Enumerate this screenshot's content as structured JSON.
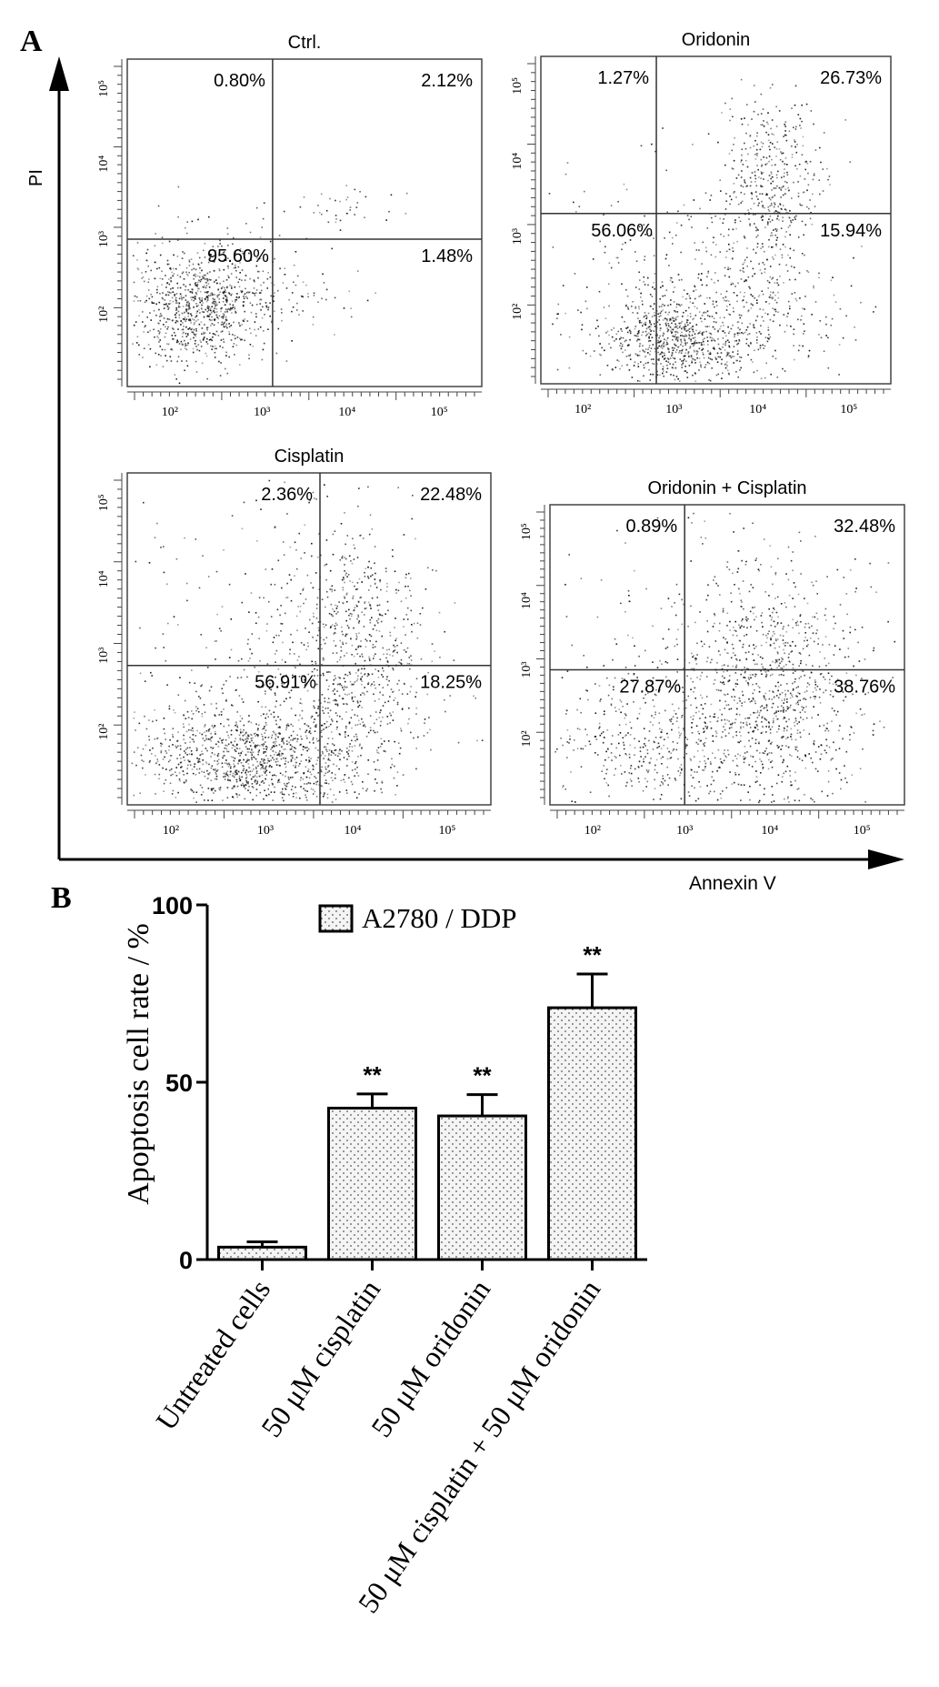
{
  "panel_a": {
    "label": "A",
    "x_axis_label": "Annexin V",
    "y_axis_label": "PI",
    "plots": [
      {
        "title": "Ctrl.",
        "quadrants": {
          "upper_left": "0.80%",
          "upper_right": "2.12%",
          "lower_left": "95.60%",
          "lower_right": "1.48%"
        },
        "x_ticks": [
          "10²",
          "10³",
          "10⁴",
          "10⁵"
        ],
        "y_ticks": [
          "10²",
          "10³",
          "10⁴",
          "10⁵"
        ]
      },
      {
        "title": "Oridonin",
        "quadrants": {
          "upper_left": "1.27%",
          "upper_right": "26.73%",
          "lower_left": "56.06%",
          "lower_right": "15.94%"
        },
        "x_ticks": [
          "10²",
          "10³",
          "10⁴",
          "10⁵"
        ],
        "y_ticks": [
          "10²",
          "10³",
          "10⁴",
          "10⁵"
        ]
      },
      {
        "title": "Cisplatin",
        "quadrants": {
          "upper_left": "2.36%",
          "upper_right": "22.48%",
          "lower_left": "56.91%",
          "lower_right": "18.25%"
        },
        "x_ticks": [
          "10²",
          "10³",
          "10⁴",
          "10⁵"
        ],
        "y_ticks": [
          "10²",
          "10³",
          "10⁴",
          "10⁵"
        ]
      },
      {
        "title": "Oridonin + Cisplatin",
        "quadrants": {
          "upper_left": "0.89%",
          "upper_right": "32.48%",
          "lower_left": "27.87%",
          "lower_right": "38.76%"
        },
        "x_ticks": [
          "10²",
          "10³",
          "10⁴",
          "10⁵"
        ],
        "y_ticks": [
          "10²",
          "10³",
          "10⁴",
          "10⁵"
        ]
      }
    ]
  },
  "chart_data": {
    "type": "bar",
    "panel_label": "B",
    "title": "",
    "ylabel": "Apoptosis cell rate / %",
    "xlabel": "",
    "ylim": [
      0,
      100
    ],
    "yticks": [
      "0",
      "50",
      "100"
    ],
    "categories": [
      "Untreated cells",
      "50 μM cisplatin",
      "50 μM oridonin",
      "50 μM cisplatin + 50 μM oridonin"
    ],
    "series": [
      {
        "name": "A2780 / DDP",
        "values": [
          3.5,
          42.7,
          40.5,
          71.0
        ],
        "errors": [
          1.5,
          4.0,
          6.0,
          9.5
        ],
        "annotations": [
          "",
          "**",
          "**",
          "**"
        ]
      }
    ],
    "legend_position": "top",
    "grid": false,
    "colors": {
      "bar_fill": "#f2f2f2",
      "bar_stroke": "#000000",
      "dots": "#555555"
    }
  }
}
